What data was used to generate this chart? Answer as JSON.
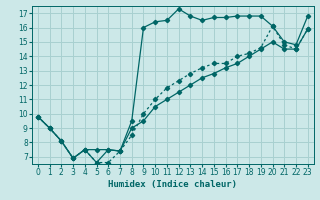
{
  "xlabel": "Humidex (Indice chaleur)",
  "bg_color": "#cce8e8",
  "grid_color": "#a8d0d0",
  "line_color": "#006666",
  "xlim": [
    -0.5,
    23.5
  ],
  "ylim": [
    6.5,
    17.5
  ],
  "xticks": [
    0,
    1,
    2,
    3,
    4,
    5,
    6,
    7,
    8,
    9,
    10,
    11,
    12,
    13,
    14,
    15,
    16,
    17,
    18,
    19,
    20,
    21,
    22,
    23
  ],
  "yticks": [
    7,
    8,
    9,
    10,
    11,
    12,
    13,
    14,
    15,
    16,
    17
  ],
  "line1_x": [
    0,
    1,
    2,
    3,
    4,
    5,
    6,
    7,
    8,
    9,
    10,
    11,
    12,
    13,
    14,
    15,
    16,
    17,
    18,
    19,
    20,
    21,
    22,
    23
  ],
  "line1_y": [
    9.8,
    9.0,
    8.1,
    6.9,
    7.5,
    7.5,
    7.5,
    7.4,
    9.5,
    16.0,
    16.4,
    16.5,
    17.3,
    16.8,
    16.5,
    16.7,
    16.7,
    16.8,
    16.8,
    16.8,
    16.1,
    15.0,
    14.8,
    16.8
  ],
  "line2_x": [
    0,
    1,
    2,
    3,
    4,
    5,
    6,
    7,
    8,
    9,
    10,
    11,
    12,
    13,
    14,
    15,
    16,
    17,
    18,
    19,
    20,
    21,
    22,
    23
  ],
  "line2_y": [
    9.8,
    9.0,
    8.1,
    6.9,
    7.5,
    6.6,
    7.5,
    7.4,
    9.0,
    9.5,
    10.5,
    11.0,
    11.5,
    12.0,
    12.5,
    12.8,
    13.2,
    13.5,
    14.0,
    14.5,
    15.0,
    14.5,
    14.5,
    15.9
  ],
  "line3_x": [
    0,
    1,
    2,
    3,
    4,
    5,
    6,
    7,
    8,
    9,
    10,
    11,
    12,
    13,
    14,
    15,
    16,
    17,
    18,
    19,
    20,
    21,
    22,
    23
  ],
  "line3_y": [
    9.8,
    9.0,
    8.1,
    6.9,
    7.5,
    6.6,
    6.6,
    7.4,
    8.5,
    10.0,
    11.0,
    11.8,
    12.3,
    12.8,
    13.2,
    13.5,
    13.5,
    14.0,
    14.2,
    14.6,
    16.1,
    14.8,
    14.5,
    15.9
  ]
}
